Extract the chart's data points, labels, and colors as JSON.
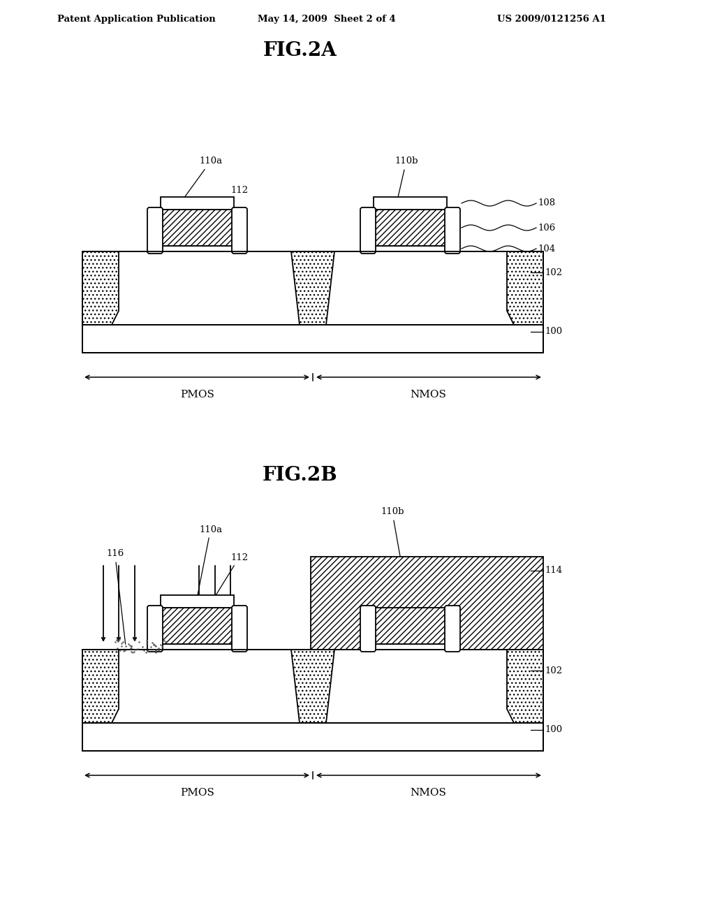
{
  "fig_title_2a": "FIG.2A",
  "fig_title_2b": "FIG.2B",
  "header_left": "Patent Application Publication",
  "header_mid": "May 14, 2009  Sheet 2 of 4",
  "header_right": "US 2009/0121256 A1",
  "bg_color": "#ffffff",
  "line_color": "#000000",
  "lw": 1.3
}
